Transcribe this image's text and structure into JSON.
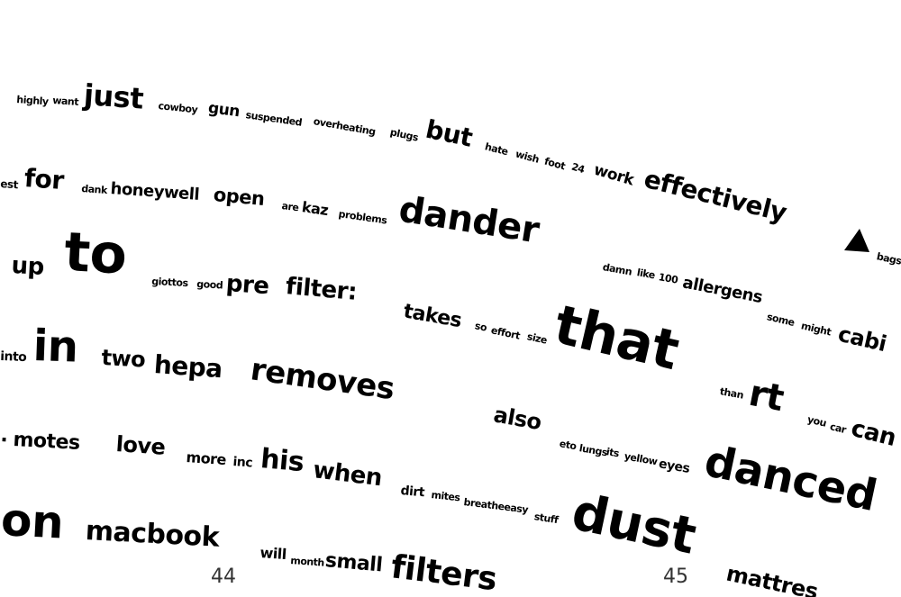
{
  "colors": {
    "background": "#ffffff",
    "text": "#000000",
    "page_number": "#333333"
  },
  "page_numbers": {
    "left": "44",
    "right": "45"
  },
  "marker_icon": "triangle-right-icon",
  "words": [
    "highly",
    "want",
    "just",
    "cowboy",
    "gun",
    "suspended",
    "overheating",
    "plugs",
    "but",
    "hate",
    "wish",
    "foot",
    "24",
    "work",
    "effectively",
    "est",
    "for",
    "dank",
    "honeywell",
    "open",
    "are",
    "kaz",
    "problems",
    "dander",
    "up",
    "to",
    "giottos",
    "good",
    "pre",
    "filter:",
    "damn",
    "like",
    "100",
    "allergens",
    "bags:",
    "takes",
    "so",
    "effort",
    "size",
    "that",
    "some",
    "might",
    "cabi",
    "into",
    "in",
    "two",
    "hepa",
    "removes",
    "than",
    "rt",
    "also",
    "you",
    "car",
    "can",
    ".",
    "motes",
    "love",
    "more",
    "inc",
    "his",
    "when",
    "eto",
    "lungs",
    "its",
    "yellow",
    "eyes",
    "danced",
    "dirt",
    "mites",
    "breatheeasy",
    "stuff",
    "dust",
    "on",
    "macbook",
    "will",
    "month",
    "small",
    "filters",
    "mattres"
  ]
}
